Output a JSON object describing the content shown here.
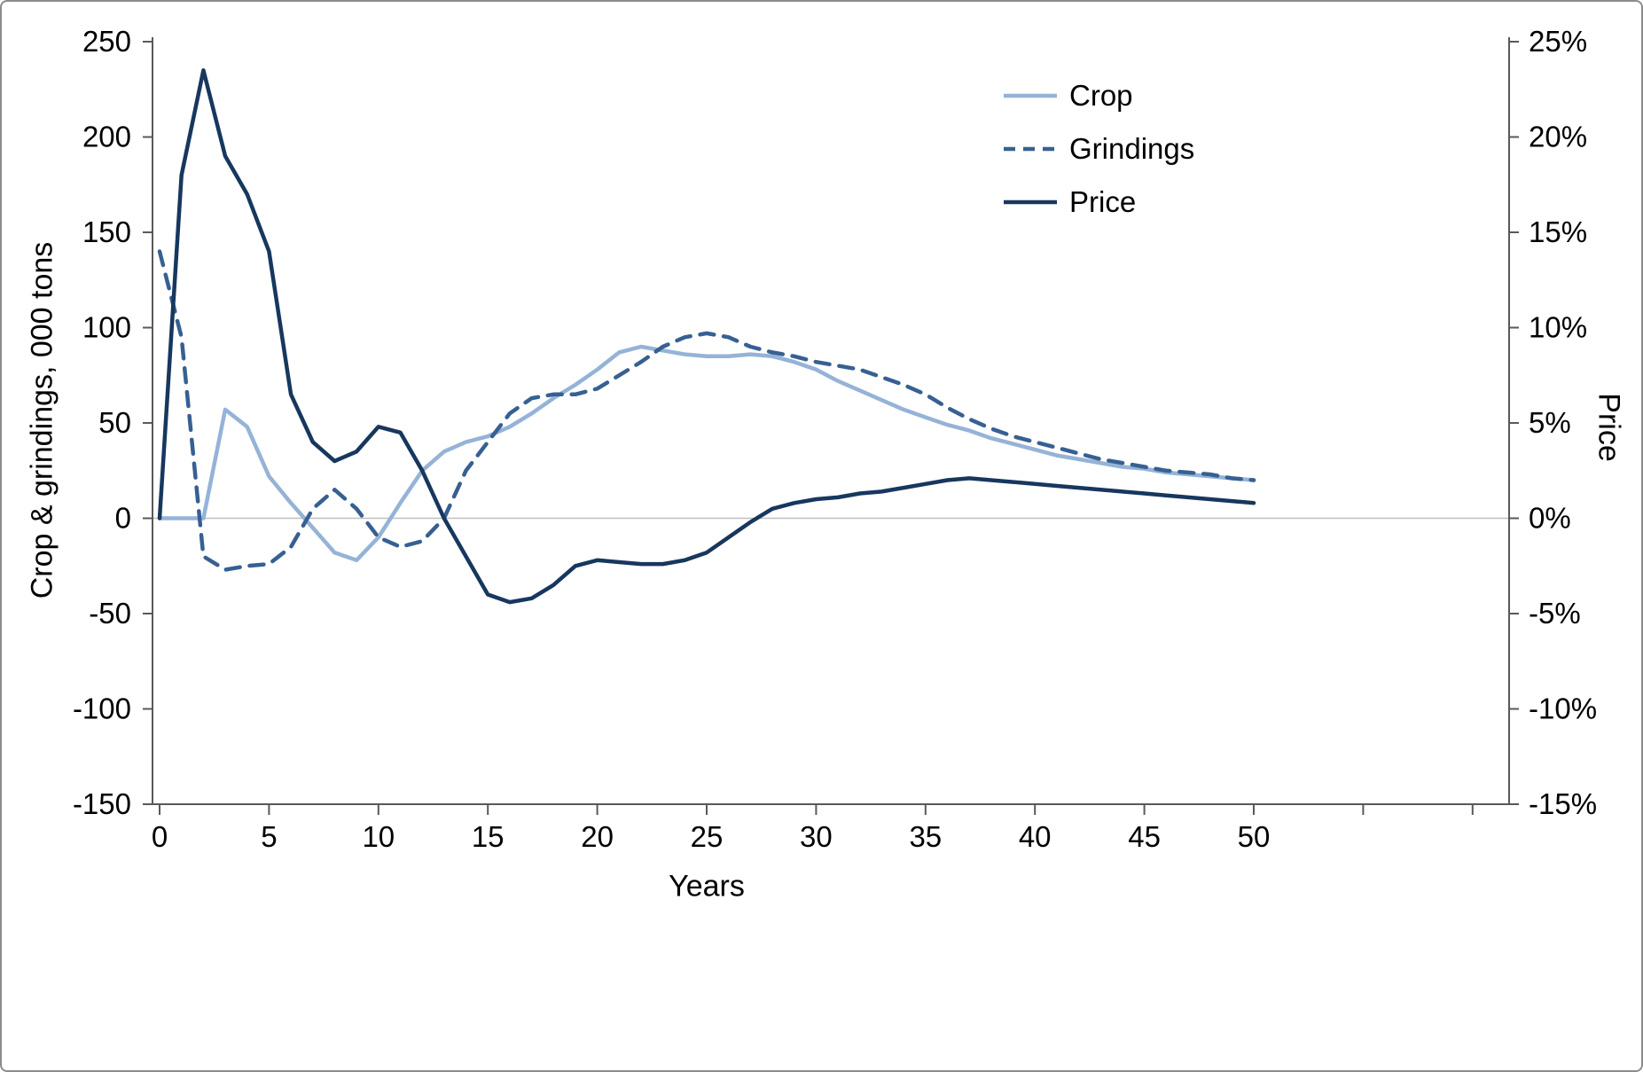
{
  "chart_data": {
    "type": "line",
    "title": "",
    "xlabel": "Years",
    "ylabel_left": "Crop & grindings, 000 tons",
    "ylabel_right": "Price",
    "x_range": [
      0,
      50
    ],
    "ylim_left": [
      -150,
      250
    ],
    "ylim_right_percent": [
      -15,
      25
    ],
    "x_ticks": [
      0,
      5,
      10,
      15,
      20,
      25,
      30,
      35,
      40,
      45,
      50
    ],
    "y_ticks_left": [
      250,
      200,
      150,
      100,
      50,
      0,
      -50,
      -100,
      -150
    ],
    "y_ticks_right": [
      "25%",
      "20%",
      "15%",
      "10%",
      "5%",
      "0%",
      "-5%",
      "-10%",
      "-15%"
    ],
    "grid": "zero-line-only",
    "legend_position": "top-right-inside",
    "x": [
      0,
      1,
      2,
      3,
      4,
      5,
      6,
      7,
      8,
      9,
      10,
      11,
      12,
      13,
      14,
      15,
      16,
      17,
      18,
      19,
      20,
      21,
      22,
      23,
      24,
      25,
      26,
      27,
      28,
      29,
      30,
      31,
      32,
      33,
      34,
      35,
      36,
      37,
      38,
      39,
      40,
      41,
      42,
      43,
      44,
      45,
      46,
      47,
      48,
      49,
      50
    ],
    "series": [
      {
        "name": "Crop",
        "axis": "left",
        "style": "solid",
        "color": "#95b3d7",
        "values": [
          0,
          0,
          0,
          57,
          48,
          22,
          8,
          -5,
          -18,
          -22,
          -10,
          8,
          25,
          35,
          40,
          43,
          48,
          55,
          63,
          70,
          78,
          87,
          90,
          88,
          86,
          85,
          85,
          86,
          85,
          82,
          78,
          72,
          67,
          62,
          57,
          53,
          49,
          46,
          42,
          39,
          36,
          33,
          31,
          29,
          27,
          26,
          24,
          23,
          22,
          21,
          20
        ]
      },
      {
        "name": "Grindings",
        "axis": "left",
        "style": "dashed",
        "color": "#376092",
        "values": [
          140,
          95,
          -20,
          -27,
          -25,
          -24,
          -15,
          5,
          15,
          5,
          -10,
          -15,
          -12,
          0,
          25,
          40,
          55,
          63,
          65,
          65,
          68,
          75,
          82,
          90,
          95,
          97,
          95,
          90,
          87,
          85,
          82,
          80,
          78,
          74,
          70,
          65,
          58,
          52,
          47,
          43,
          40,
          37,
          34,
          31,
          29,
          27,
          25,
          24,
          23,
          21,
          20
        ]
      },
      {
        "name": "Price",
        "axis": "right",
        "style": "solid",
        "color": "#17375e",
        "unit": "%",
        "values": [
          0,
          18,
          23.5,
          19,
          17,
          14,
          6.5,
          4,
          3,
          3.5,
          4.8,
          4.5,
          2.5,
          0,
          -2,
          -4,
          -4.4,
          -4.2,
          -3.5,
          -2.5,
          -2.2,
          -2.3,
          -2.4,
          -2.4,
          -2.2,
          -1.8,
          -1,
          -0.2,
          0.5,
          0.8,
          1,
          1.1,
          1.3,
          1.4,
          1.6,
          1.8,
          2,
          2.1,
          2,
          1.9,
          1.8,
          1.7,
          1.6,
          1.5,
          1.4,
          1.3,
          1.2,
          1.1,
          1,
          0.9,
          0.8
        ]
      }
    ],
    "colors": {
      "axis": "#595959",
      "zero_gridline": "#bfbfbf",
      "text": "#000000"
    }
  }
}
